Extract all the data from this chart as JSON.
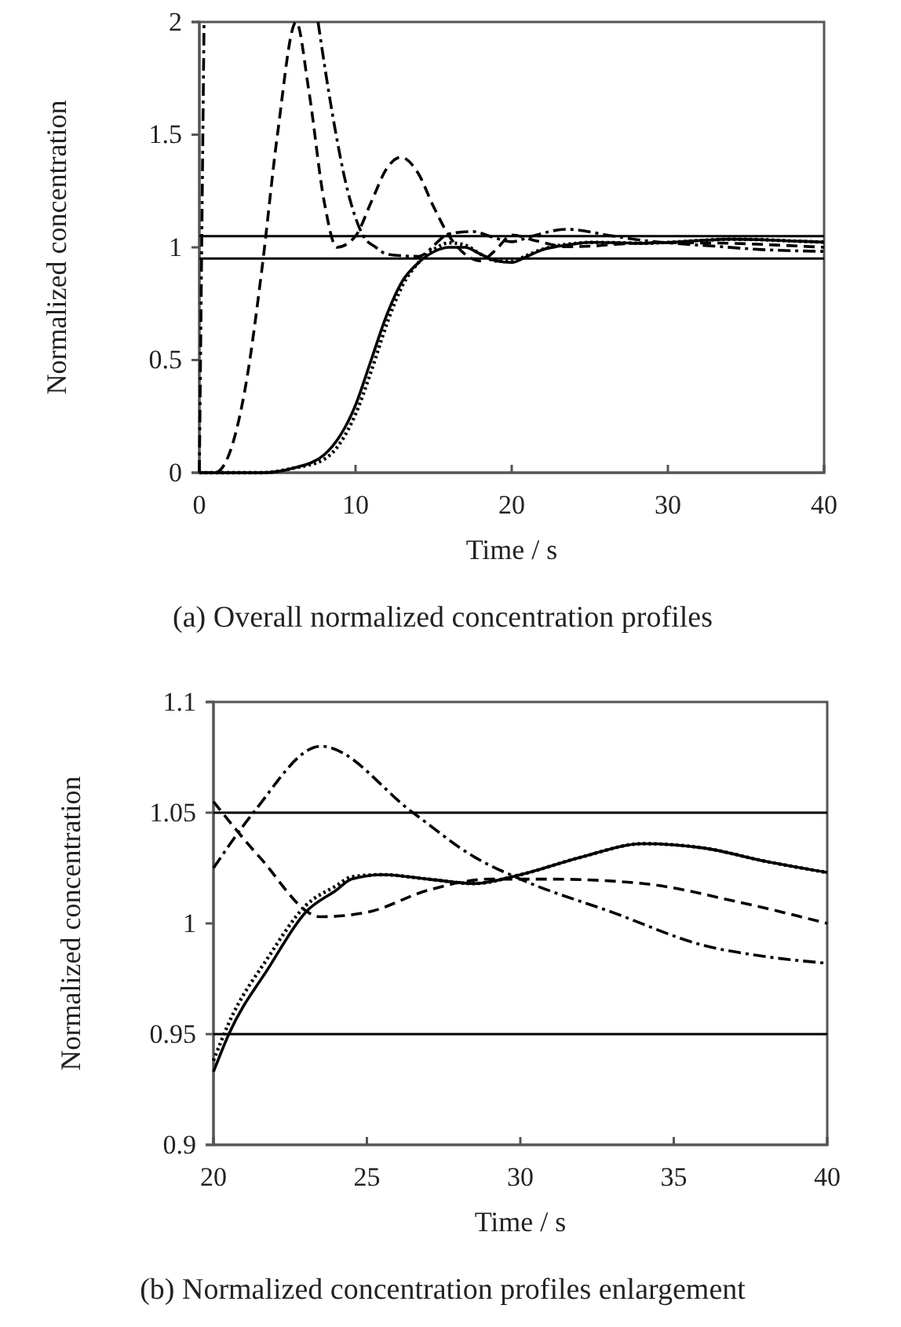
{
  "chart_data": [
    {
      "type": "line",
      "title": "(a) Overall normalized concentration profiles",
      "xlabel": "Time / s",
      "ylabel": "Normalized concentration",
      "xlim": [
        0,
        40
      ],
      "xticks": [
        0,
        10,
        20,
        30,
        40
      ],
      "ylim": [
        0,
        2
      ],
      "yticks": [
        0,
        0.5,
        1,
        1.5,
        2
      ],
      "marker": "none",
      "ref_lines": [
        {
          "axis": "y",
          "value": 1.05,
          "color": "#000000"
        },
        {
          "axis": "y",
          "value": 0.95,
          "color": "#000000"
        }
      ],
      "series": [
        {
          "color": "#000000",
          "line_style": "solid",
          "x": [
            0,
            4,
            6,
            8,
            10,
            11,
            12,
            13,
            14,
            15,
            16,
            17,
            18,
            19,
            20,
            21,
            22,
            23,
            24,
            25,
            27,
            28.5,
            30,
            32,
            34,
            36,
            38,
            40
          ],
          "values": [
            0,
            0,
            0.02,
            0.08,
            0.3,
            0.5,
            0.7,
            0.85,
            0.93,
            0.98,
            1.0,
            1.0,
            0.97,
            0.94,
            0.933,
            0.96,
            0.99,
            1.005,
            1.015,
            1.022,
            1.02,
            1.018,
            1.022,
            1.03,
            1.036,
            1.034,
            1.028,
            1.023
          ]
        },
        {
          "color": "#000000",
          "line_style": "dotted",
          "x": [
            0,
            4,
            6,
            8,
            10,
            11,
            12,
            13,
            14,
            15,
            16,
            17,
            18,
            19,
            20,
            21,
            22,
            23,
            24,
            25,
            27,
            28.5,
            30,
            32,
            34,
            36,
            38,
            40
          ],
          "values": [
            0,
            0,
            0.02,
            0.06,
            0.26,
            0.45,
            0.66,
            0.83,
            0.93,
            0.99,
            1.02,
            1.01,
            0.97,
            0.94,
            0.938,
            0.965,
            0.992,
            1.008,
            1.017,
            1.022,
            1.02,
            1.018,
            1.022,
            1.03,
            1.036,
            1.034,
            1.028,
            1.023
          ]
        },
        {
          "color": "#000000",
          "line_style": "dashed",
          "x": [
            0,
            1,
            2,
            3,
            4,
            5,
            6.2,
            7,
            8,
            8.8,
            10,
            11,
            12,
            12.9,
            14,
            15,
            16,
            17,
            18,
            19,
            20,
            21.5,
            23.5,
            25,
            27,
            29,
            31,
            34,
            37,
            40
          ],
          "values": [
            0,
            0,
            0.1,
            0.4,
            0.9,
            1.5,
            2.0,
            1.7,
            1.2,
            1.0,
            1.05,
            1.2,
            1.35,
            1.4,
            1.33,
            1.18,
            1.05,
            0.97,
            0.94,
            0.99,
            1.055,
            1.03,
            1.003,
            1.005,
            1.015,
            1.02,
            1.02,
            1.018,
            1.01,
            1.0
          ]
        },
        {
          "color": "#000000",
          "line_style": "dashdot",
          "x": [
            0,
            0.3,
            4,
            7.6,
            8.5,
            9.5,
            10.5,
            11.3,
            12,
            14,
            16,
            17.5,
            19,
            20,
            21.3,
            23.5,
            26.5,
            28.5,
            30,
            33,
            36,
            38,
            40
          ],
          "values": [
            0,
            2,
            null,
            2,
            1.6,
            1.25,
            1.05,
            1.0,
            0.97,
            0.96,
            1.06,
            1.07,
            1.04,
            1.025,
            1.05,
            1.08,
            1.05,
            1.03,
            1.02,
            1.005,
            0.99,
            0.985,
            0.982
          ]
        }
      ]
    },
    {
      "type": "line",
      "title": "(b) Normalized concentration profiles enlargement",
      "xlabel": "Time / s",
      "ylabel": "Normalized concentration",
      "xlim": [
        20,
        40
      ],
      "xticks": [
        20,
        25,
        30,
        35,
        40
      ],
      "ylim": [
        0.9,
        1.1
      ],
      "yticks": [
        0.9,
        0.95,
        1,
        1.05,
        1.1
      ],
      "marker": "none",
      "ref_lines": [
        {
          "axis": "y",
          "value": 1.05,
          "color": "#000000"
        },
        {
          "axis": "y",
          "value": 0.95,
          "color": "#000000"
        }
      ],
      "series": [
        {
          "color": "#000000",
          "line_style": "solid",
          "x": [
            20,
            20.5,
            21.8,
            23,
            24,
            24.5,
            25.5,
            27,
            28.5,
            30,
            32,
            34,
            36,
            38,
            40
          ],
          "values": [
            0.933,
            0.95,
            0.98,
            1.005,
            1.015,
            1.02,
            1.022,
            1.02,
            1.018,
            1.022,
            1.03,
            1.036,
            1.034,
            1.028,
            1.023
          ]
        },
        {
          "color": "#000000",
          "line_style": "dotted",
          "x": [
            20,
            20.5,
            21.8,
            23,
            24,
            24.5,
            25.5,
            27,
            28.5,
            30,
            32,
            34,
            36,
            38,
            40
          ],
          "values": [
            0.938,
            0.955,
            0.985,
            1.008,
            1.017,
            1.021,
            1.022,
            1.02,
            1.018,
            1.022,
            1.03,
            1.036,
            1.034,
            1.028,
            1.023
          ]
        },
        {
          "color": "#000000",
          "line_style": "dashed",
          "x": [
            20,
            21.5,
            23.5,
            25,
            27,
            29,
            31,
            34,
            37,
            40
          ],
          "values": [
            1.055,
            1.03,
            1.003,
            1.005,
            1.015,
            1.02,
            1.02,
            1.018,
            1.01,
            1.0
          ]
        },
        {
          "color": "#000000",
          "line_style": "dashdot",
          "x": [
            20,
            21.3,
            23.5,
            26.5,
            28.5,
            30,
            33,
            36,
            38,
            40
          ],
          "values": [
            1.025,
            1.05,
            1.08,
            1.05,
            1.03,
            1.02,
            1.005,
            0.99,
            0.985,
            0.982
          ]
        }
      ]
    }
  ]
}
